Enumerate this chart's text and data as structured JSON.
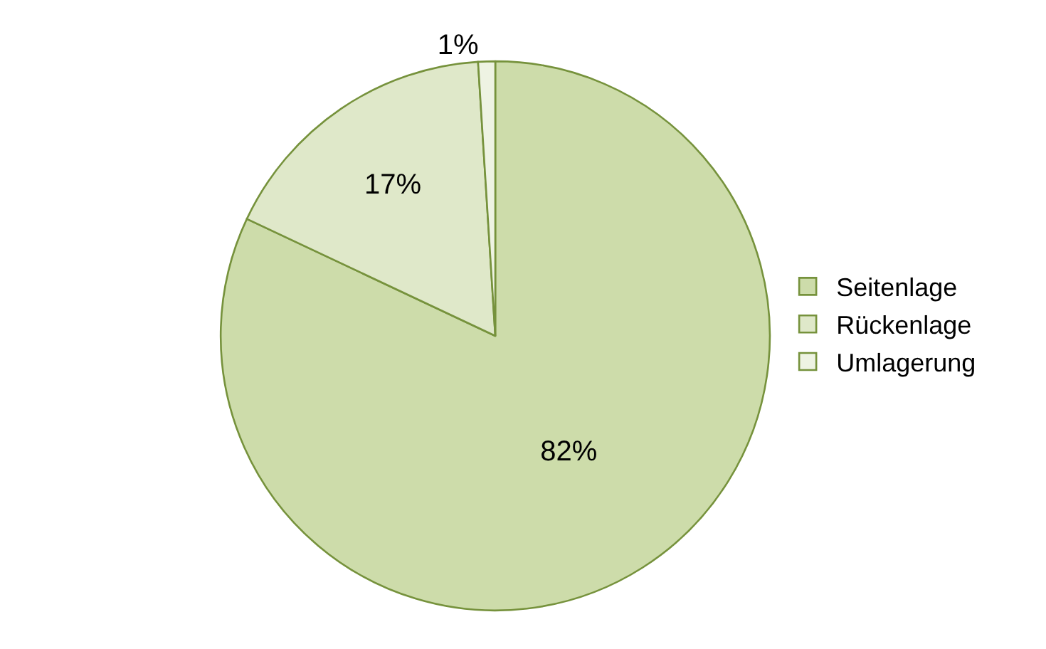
{
  "chart_data": {
    "type": "pie",
    "categories": [
      "Seitenlage",
      "Rückenlage",
      "Umlagerung"
    ],
    "values": [
      82,
      17,
      1
    ],
    "value_labels": [
      "82%",
      "17%",
      "1%"
    ],
    "colors": [
      "#cddcaa",
      "#dfe8c9",
      "#eef3e3"
    ],
    "legend": "right"
  }
}
